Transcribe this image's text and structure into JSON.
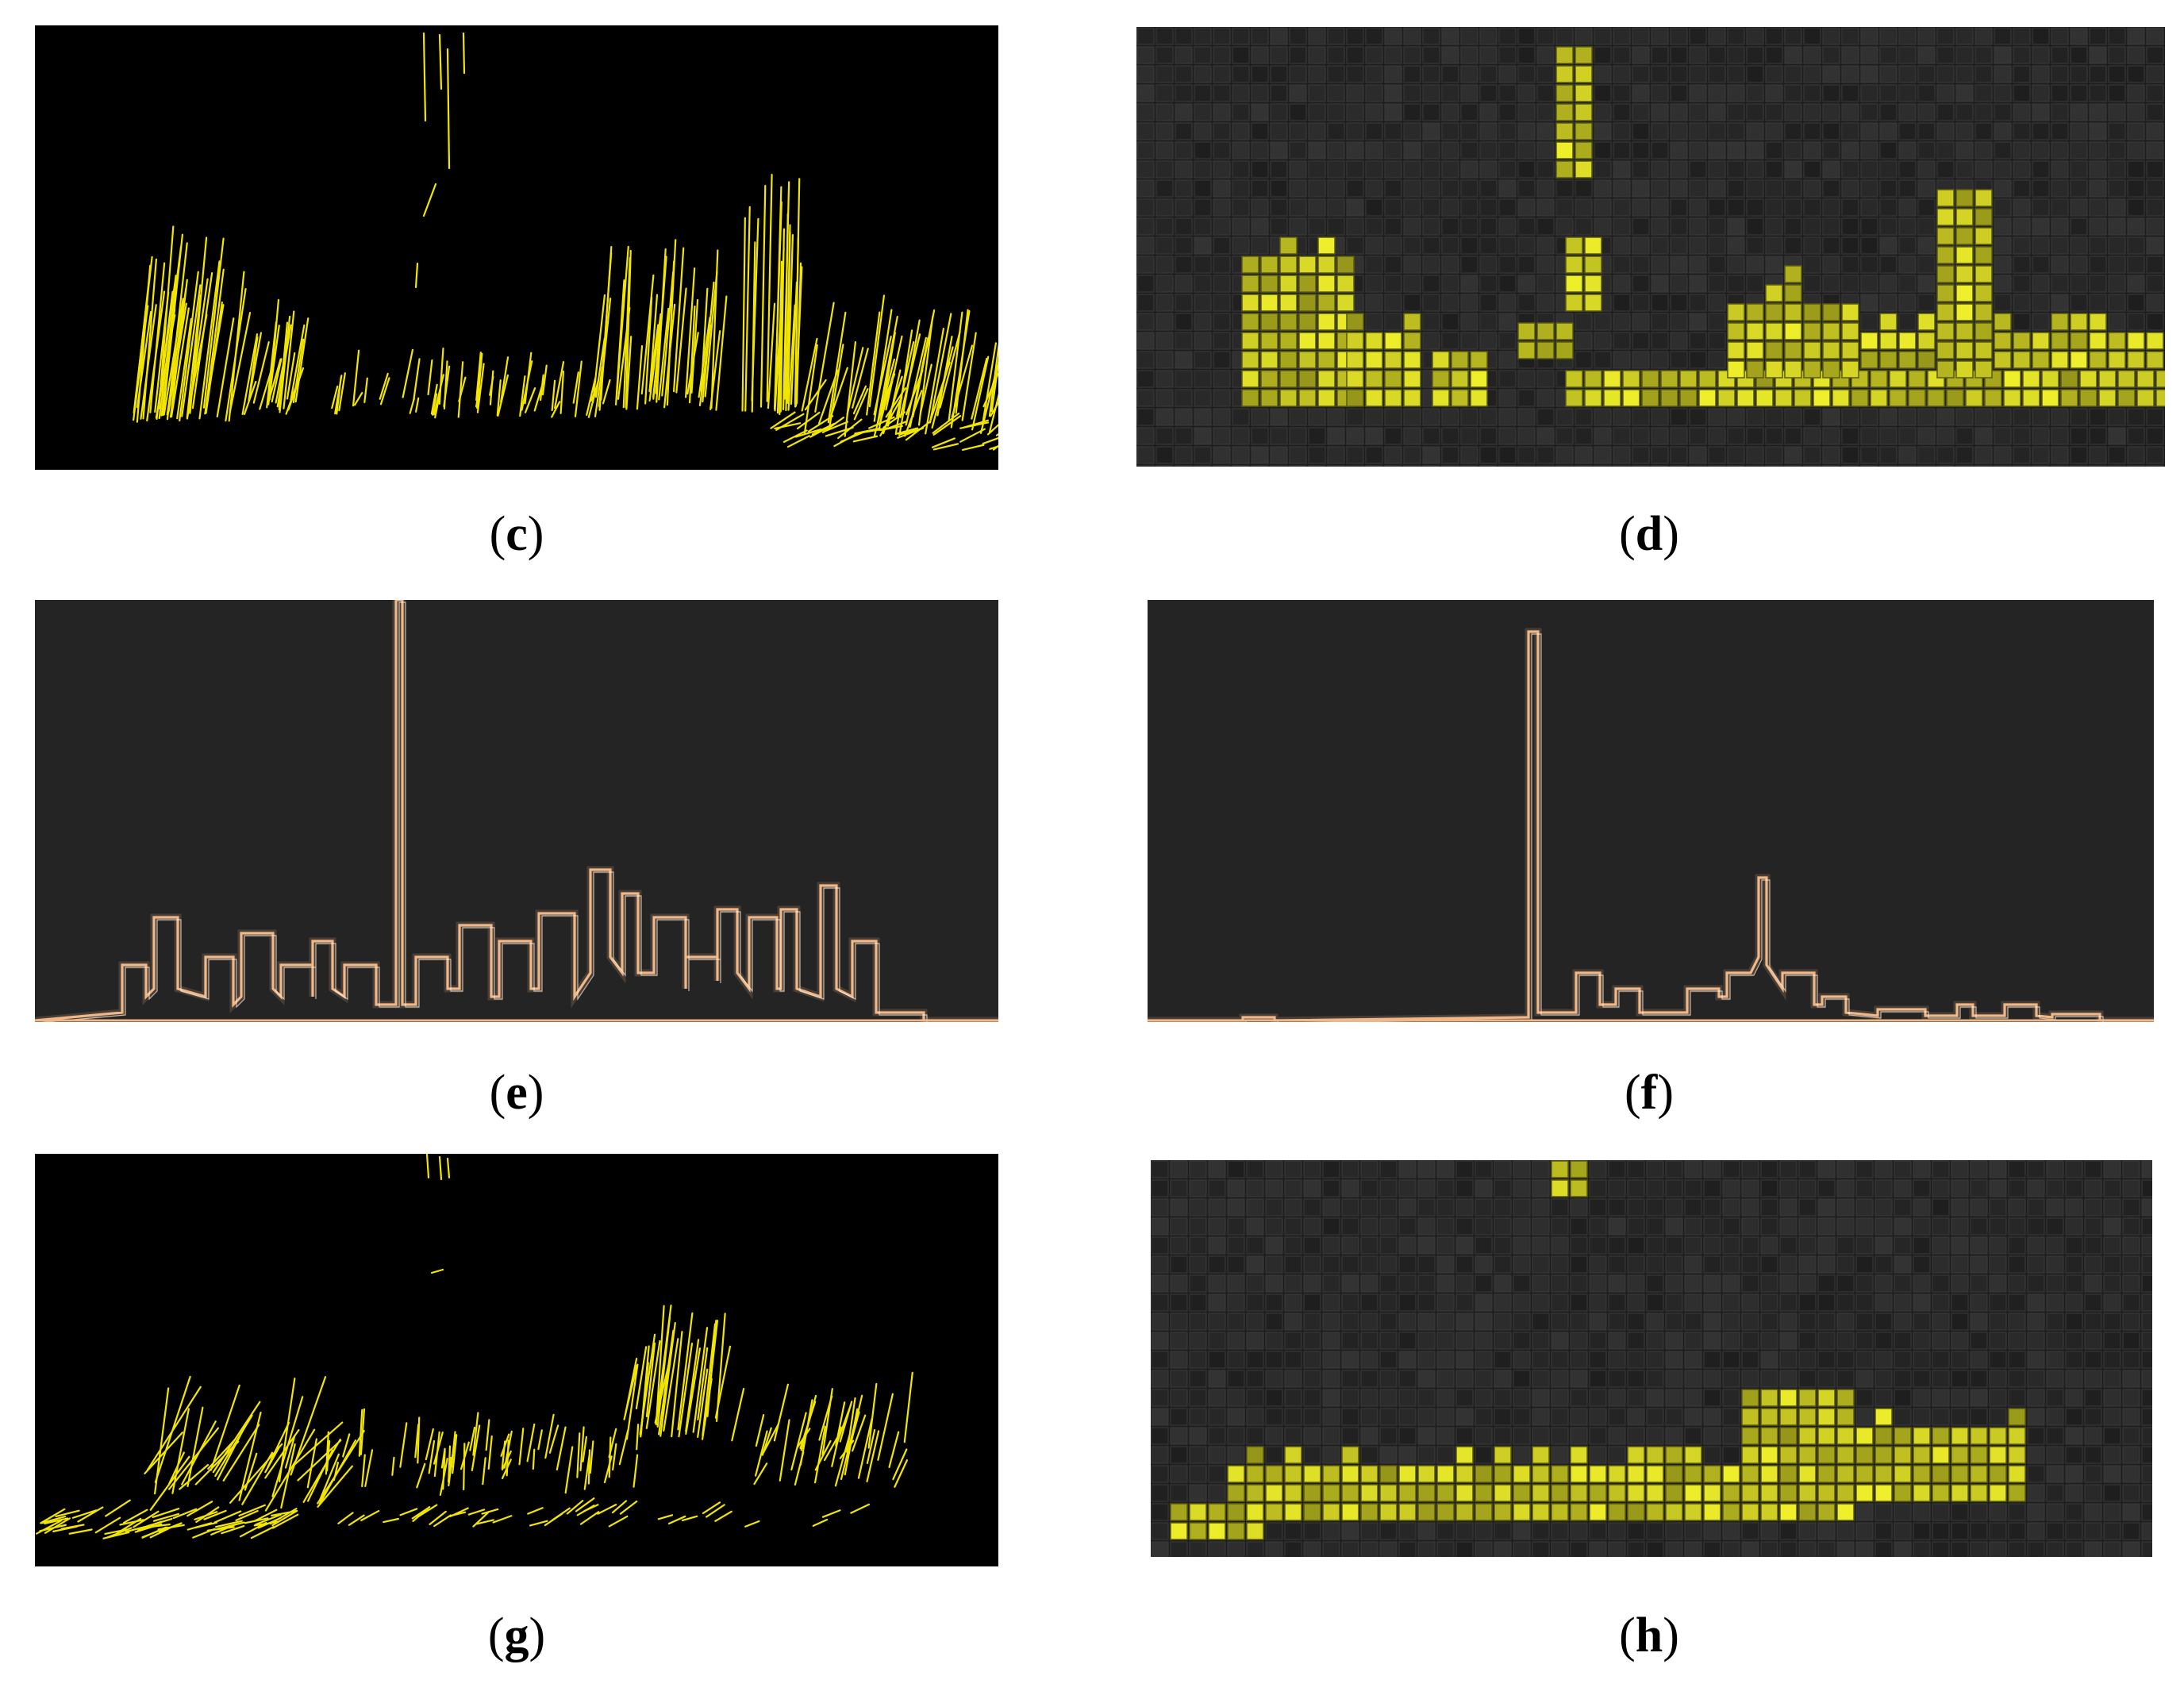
{
  "figure": {
    "panels": [
      {
        "id": "c",
        "label": "c",
        "kind": "point-cloud-lines",
        "background": "#000000",
        "accent": "#f2e600"
      },
      {
        "id": "d",
        "label": "d",
        "kind": "voxel-grid",
        "background": "#1e1e1e",
        "accent": "#c8c828"
      },
      {
        "id": "e",
        "label": "e",
        "kind": "contour-edges",
        "background": "#242424",
        "accent": "#f0b888"
      },
      {
        "id": "f",
        "label": "f",
        "kind": "contour-edges",
        "background": "#242424",
        "accent": "#f0b888"
      },
      {
        "id": "g",
        "label": "g",
        "kind": "point-cloud-lines",
        "background": "#000000",
        "accent": "#f2e600"
      },
      {
        "id": "h",
        "label": "h",
        "kind": "voxel-grid",
        "background": "#1e1e1e",
        "accent": "#c8c828"
      }
    ]
  }
}
